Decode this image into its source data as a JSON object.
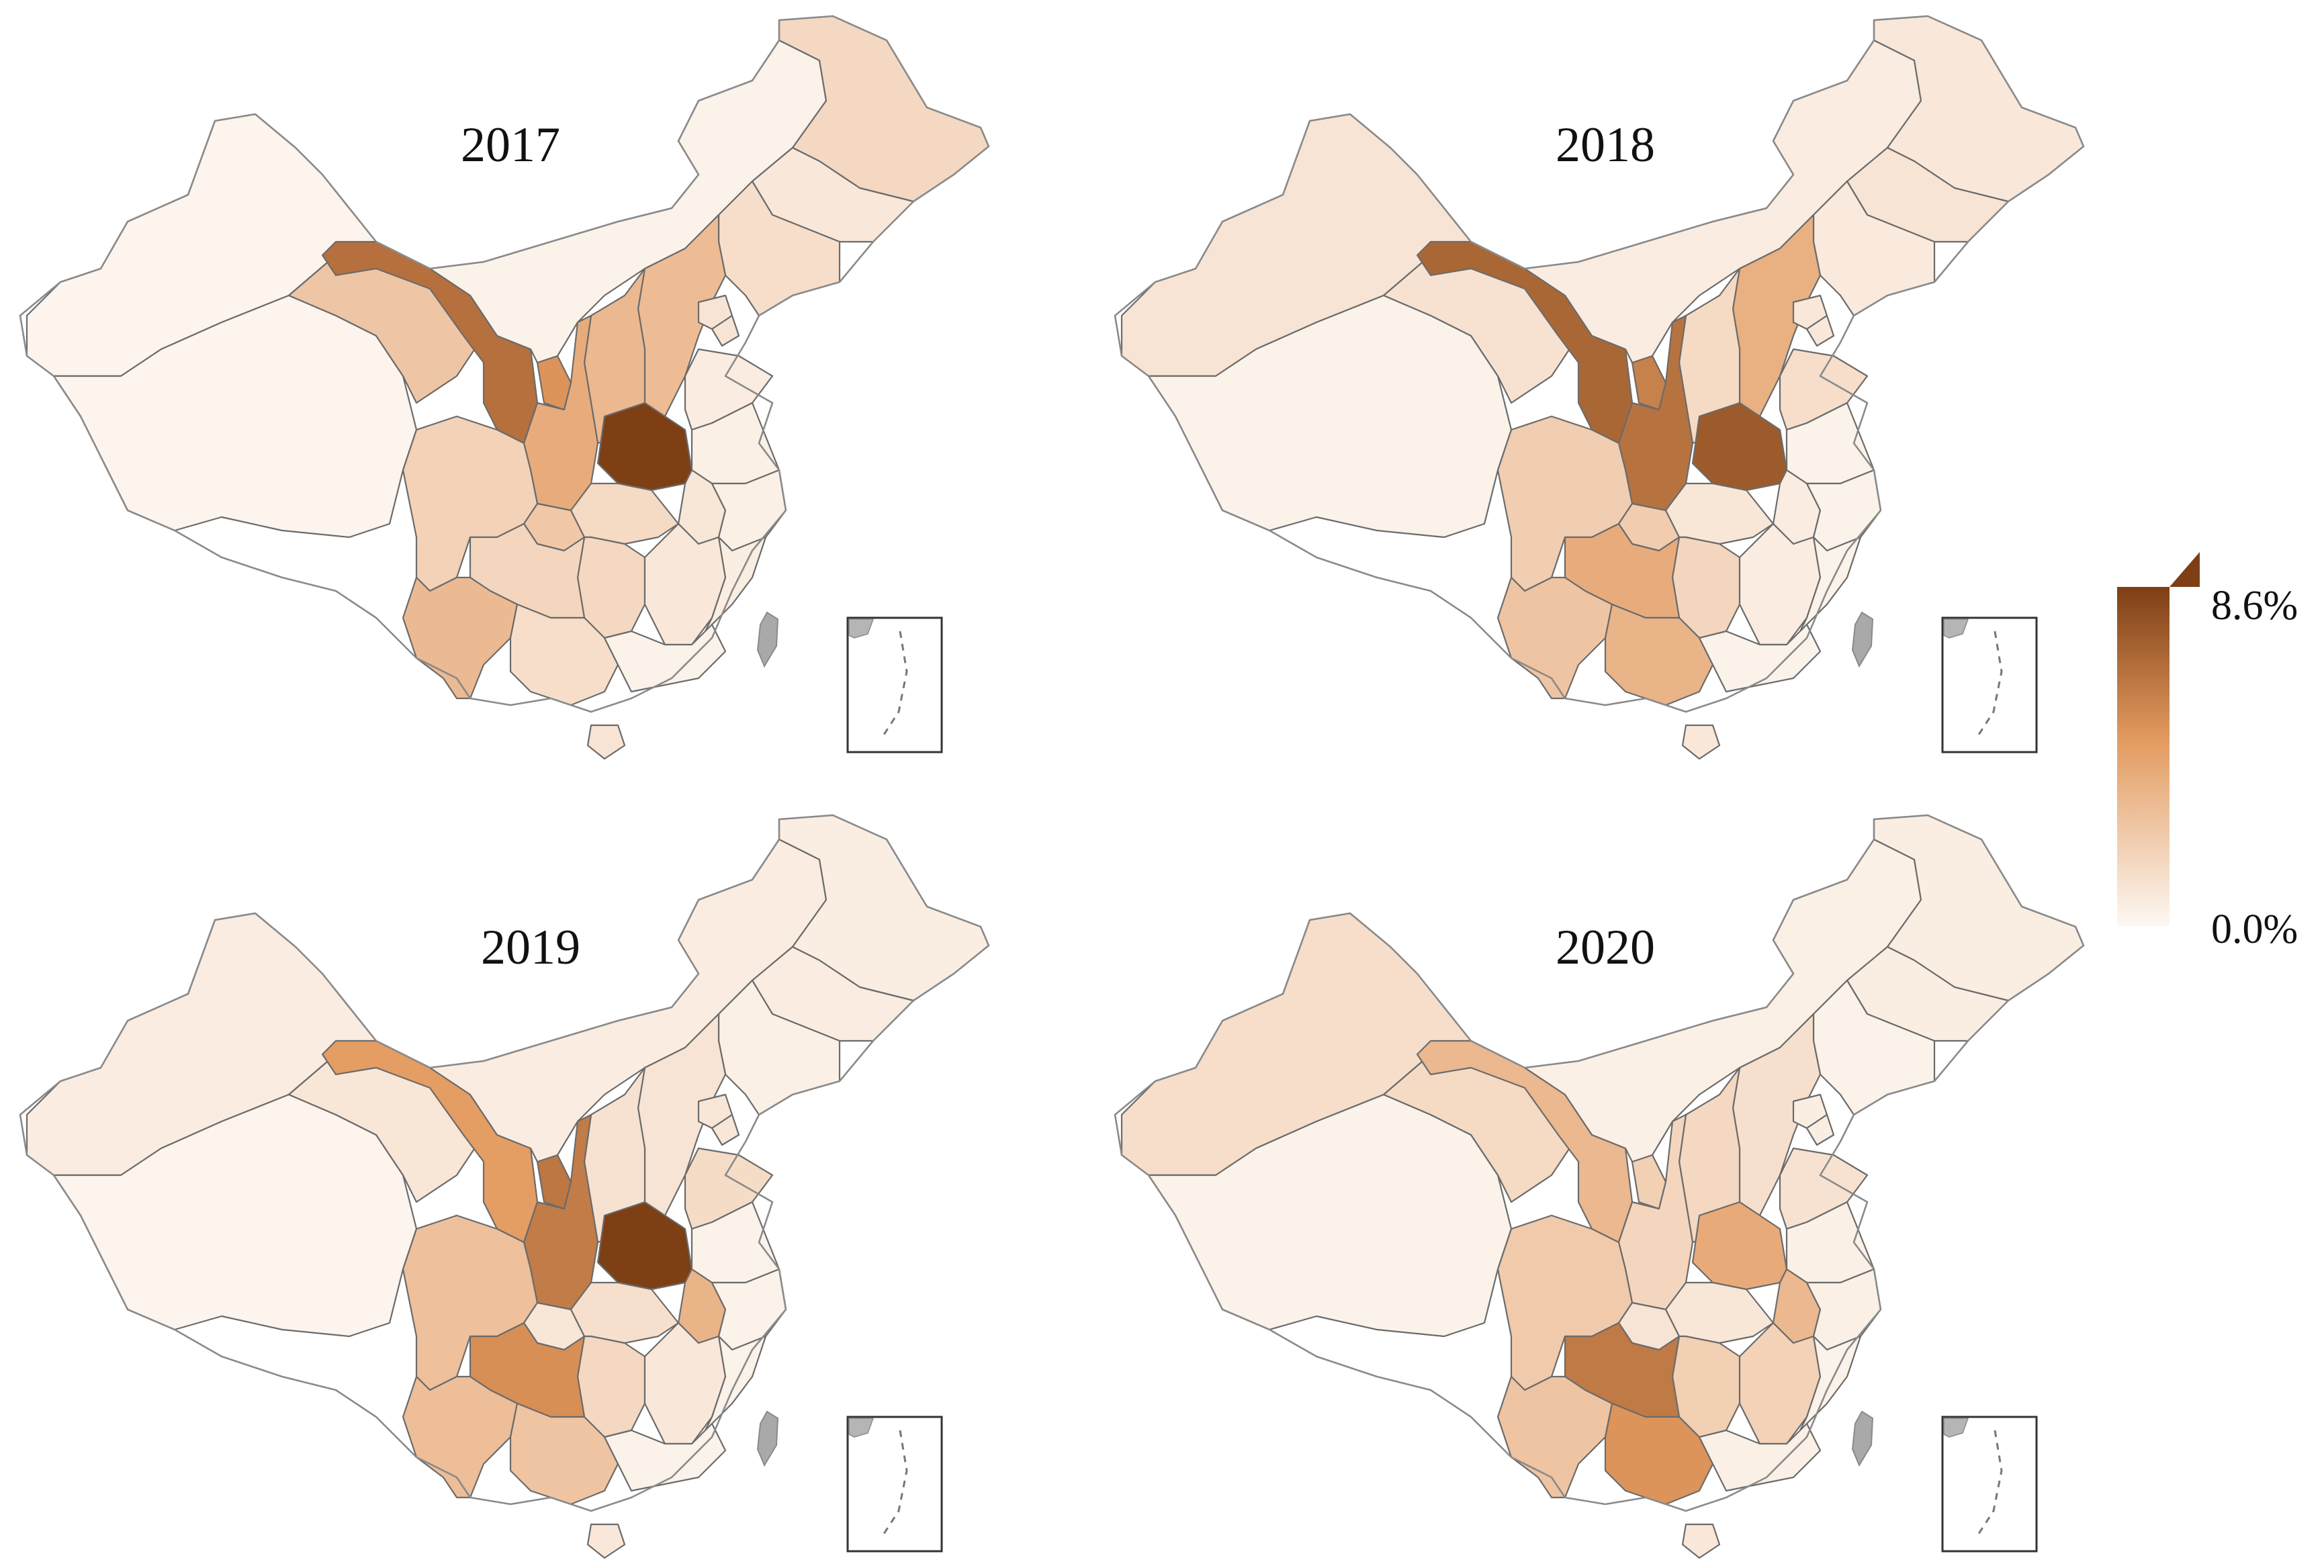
{
  "legend": {
    "max_label": "8.6%",
    "min_label": "0.0%",
    "max_value": 8.6,
    "min_value": 0.0,
    "color_low": "#fdf8f3",
    "color_high": "#7e3f15"
  },
  "panels": [
    {
      "year": "2017",
      "values": {
        "xinjiang": 0.2,
        "tibet": 0.2,
        "qinghai": 2.5,
        "gansu": 6.5,
        "ningxia": 5.0,
        "inner_mongolia": 0.3,
        "heilongjiang": 1.6,
        "jilin": 0.8,
        "liaoning": 1.3,
        "hebei": 3.0,
        "beijing": 1.0,
        "tianjin": 1.0,
        "shanxi": 3.2,
        "shaanxi": 3.8,
        "henan": 8.6,
        "shandong": 0.6,
        "jiangsu": 0.4,
        "anhui": 0.9,
        "sichuan": 1.9,
        "chongqing": 2.4,
        "hubei": 1.5,
        "hunan": 1.6,
        "jiangxi": 0.8,
        "zhejiang": 0.4,
        "fujian": 0.5,
        "guizhou": 1.7,
        "yunnan": 3.1,
        "guangxi": 1.3,
        "guangdong": 0.3,
        "hainan": 1.0
      }
    },
    {
      "year": "2018",
      "values": {
        "xinjiang": 1.0,
        "tibet": 0.3,
        "qinghai": 1.1,
        "gansu": 6.9,
        "ningxia": 5.8,
        "inner_mongolia": 0.6,
        "heilongjiang": 0.8,
        "jilin": 1.0,
        "liaoning": 0.7,
        "hebei": 3.6,
        "beijing": 0.8,
        "tianjin": 0.8,
        "shanxi": 1.5,
        "shaanxi": 6.4,
        "henan": 7.4,
        "shandong": 1.3,
        "jiangsu": 0.3,
        "anhui": 0.6,
        "sichuan": 2.1,
        "chongqing": 2.2,
        "hubei": 0.9,
        "hunan": 1.7,
        "jiangxi": 0.6,
        "zhejiang": 0.3,
        "fujian": 0.3,
        "guizhou": 3.8,
        "yunnan": 2.6,
        "guangxi": 3.4,
        "guangdong": 0.3,
        "hainan": 0.8
      }
    },
    {
      "year": "2019",
      "values": {
        "xinjiang": 0.6,
        "tibet": 0.2,
        "qinghai": 0.9,
        "gansu": 4.6,
        "ningxia": 6.2,
        "inner_mongolia": 0.6,
        "heilongjiang": 0.5,
        "jilin": 0.6,
        "liaoning": 0.4,
        "hebei": 1.0,
        "beijing": 0.9,
        "tianjin": 0.9,
        "shanxi": 1.1,
        "shaanxi": 6.0,
        "henan": 8.6,
        "shandong": 1.4,
        "jiangsu": 0.3,
        "anhui": 3.4,
        "sichuan": 2.8,
        "chongqing": 0.9,
        "hubei": 1.2,
        "hunan": 1.6,
        "jiangxi": 0.8,
        "zhejiang": 0.3,
        "fujian": 0.3,
        "guizhou": 5.2,
        "yunnan": 2.9,
        "guangxi": 2.6,
        "guangdong": 0.3,
        "hainan": 0.8
      }
    },
    {
      "year": "2020",
      "values": {
        "xinjiang": 1.3,
        "tibet": 0.3,
        "qinghai": 1.5,
        "gansu": 3.2,
        "ningxia": 2.0,
        "inner_mongolia": 0.4,
        "heilongjiang": 0.5,
        "jilin": 0.5,
        "liaoning": 0.3,
        "hebei": 1.2,
        "beijing": 0.5,
        "tianjin": 0.5,
        "shanxi": 1.6,
        "shaanxi": 1.7,
        "henan": 3.9,
        "shandong": 1.1,
        "jiangsu": 0.4,
        "anhui": 3.2,
        "sichuan": 2.3,
        "chongqing": 1.0,
        "hubei": 0.9,
        "hunan": 2.0,
        "jiangxi": 1.9,
        "zhejiang": 0.4,
        "fujian": 0.3,
        "guizhou": 6.1,
        "yunnan": 2.6,
        "guangxi": 5.0,
        "guangdong": 0.4,
        "hainan": 0.8
      }
    }
  ]
}
